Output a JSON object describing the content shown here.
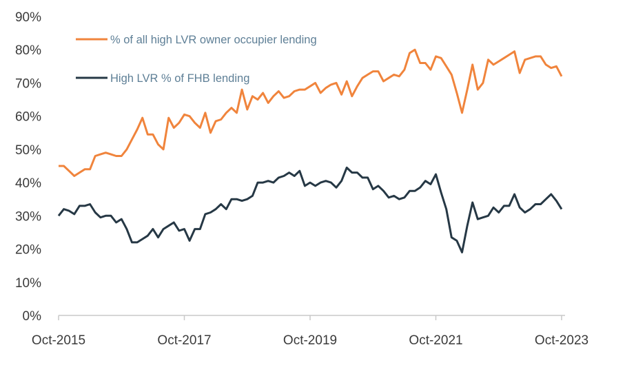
{
  "chart_data": {
    "type": "line",
    "title": "",
    "xlabel": "",
    "ylabel": "",
    "ylim": [
      0,
      90
    ],
    "y_ticks": [
      "0%",
      "10%",
      "20%",
      "30%",
      "40%",
      "50%",
      "60%",
      "70%",
      "80%",
      "90%"
    ],
    "x_ticks": [
      "Oct-2015",
      "Oct-2017",
      "Oct-2019",
      "Oct-2021",
      "Oct-2023"
    ],
    "x_tick_month_index": [
      0,
      24,
      48,
      72,
      96
    ],
    "x_start": "Oct-2015",
    "x_end": "Oct-2023",
    "frequency": "monthly",
    "grid": false,
    "legend_placement": "top-left",
    "series": [
      {
        "name": "% of all high LVR owner occupier lending",
        "color": "#f0843c",
        "values": [
          45,
          45,
          43.5,
          42,
          43,
          44,
          44,
          48,
          48.5,
          49,
          48.5,
          48,
          48,
          50,
          53,
          56,
          59.5,
          54.5,
          54.5,
          51.5,
          50,
          59.5,
          56.5,
          58,
          60.5,
          60,
          58,
          56.5,
          61,
          55,
          58.5,
          59,
          61,
          62.5,
          61,
          68,
          62,
          66,
          65,
          67,
          64,
          66,
          67.5,
          65.5,
          66,
          67.5,
          68,
          68,
          69,
          70,
          67,
          68.5,
          69.5,
          70,
          66.5,
          70.5,
          66,
          69,
          71.5,
          72.5,
          73.5,
          73.5,
          70.5,
          71.5,
          72.5,
          72,
          74,
          79,
          80,
          76,
          76,
          74,
          78,
          77.5,
          75,
          72.5,
          67,
          61,
          68,
          75.5,
          68,
          70,
          77,
          75.5,
          76.5,
          77.5,
          78.5,
          79.5,
          73,
          77,
          77.5,
          78,
          78,
          75.5,
          74.5,
          75,
          72
        ]
      },
      {
        "name": "High LVR % of FHB lending",
        "color": "#263845",
        "values": [
          30,
          32,
          31.5,
          30.5,
          33,
          33,
          33.5,
          31,
          29.5,
          30,
          30,
          28,
          29,
          26,
          22,
          22,
          23,
          24,
          26,
          23.5,
          26,
          27,
          28,
          25.5,
          26,
          22.5,
          26,
          26,
          30.5,
          31,
          32,
          33.5,
          32,
          35,
          35,
          34.5,
          35,
          36,
          40,
          40,
          40.5,
          40,
          41.5,
          42,
          43,
          42,
          43.5,
          39,
          40,
          39,
          40,
          40.5,
          40,
          38.5,
          40.5,
          44.5,
          43,
          43,
          41.5,
          41.5,
          38,
          39,
          37.5,
          35.5,
          36,
          35,
          35.5,
          37.5,
          37.5,
          38.5,
          40.5,
          39.5,
          42.5,
          37,
          32,
          23.5,
          22.5,
          19,
          27,
          34,
          29,
          29.5,
          30,
          32.5,
          31,
          33,
          33,
          36.5,
          32.5,
          31,
          32,
          33.5,
          33.5,
          35,
          36.5,
          34.5,
          32
        ]
      }
    ]
  }
}
